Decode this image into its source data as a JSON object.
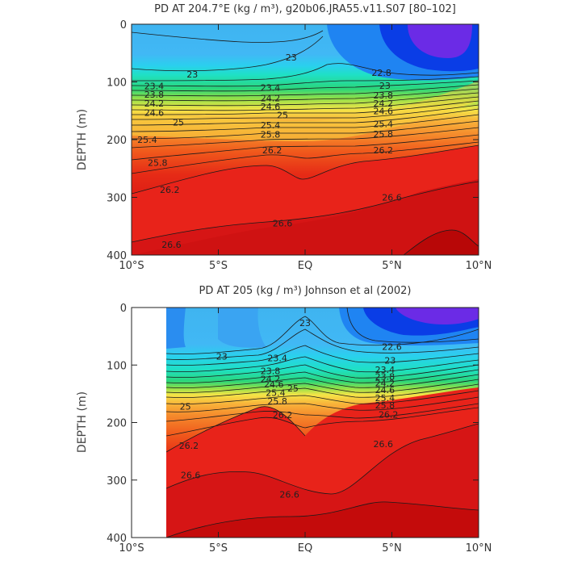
{
  "chart_data": [
    {
      "type": "heatmap",
      "title": "PD AT 204.7°E (kg / m³), g20b06.JRA55.v11.S07 [80–102]",
      "xlabel": "",
      "ylabel": "DEPTH (m)",
      "x_ticks": [
        "10°S",
        "5°S",
        "EQ",
        "5°N",
        "10°N"
      ],
      "x_tick_values": [
        -10,
        -5,
        0,
        5,
        10
      ],
      "xlim": [
        -10,
        10
      ],
      "y_ticks": [
        "0",
        "100",
        "200",
        "300",
        "400"
      ],
      "y_tick_values": [
        0,
        100,
        200,
        300,
        400
      ],
      "ylim": [
        400,
        0
      ],
      "contour_interval": 0.2,
      "contour_labels": [
        {
          "text": "23",
          "x": -6.5,
          "y": 87
        },
        {
          "text": "23",
          "x": -0.8,
          "y": 57
        },
        {
          "text": "22.8",
          "x": 4.4,
          "y": 84
        },
        {
          "text": "23.4",
          "x": -8.7,
          "y": 107
        },
        {
          "text": "23.8",
          "x": -8.7,
          "y": 122
        },
        {
          "text": "24.2",
          "x": -8.7,
          "y": 137
        },
        {
          "text": "24.6",
          "x": -8.7,
          "y": 153
        },
        {
          "text": "25",
          "x": -7.3,
          "y": 170
        },
        {
          "text": "25.4",
          "x": -9.1,
          "y": 200
        },
        {
          "text": "25.8",
          "x": -8.5,
          "y": 240
        },
        {
          "text": "26.2",
          "x": -7.8,
          "y": 287
        },
        {
          "text": "26.6",
          "x": -7.7,
          "y": 382
        },
        {
          "text": "23.4",
          "x": -2.0,
          "y": 110
        },
        {
          "text": "24.2",
          "x": -2.0,
          "y": 128
        },
        {
          "text": "24.6",
          "x": -2.0,
          "y": 143
        },
        {
          "text": "25",
          "x": -1.3,
          "y": 157
        },
        {
          "text": "25.4",
          "x": -2.0,
          "y": 175
        },
        {
          "text": "25.8",
          "x": -2.0,
          "y": 191
        },
        {
          "text": "26.2",
          "x": -1.9,
          "y": 218
        },
        {
          "text": "26.6",
          "x": -1.3,
          "y": 345
        },
        {
          "text": "23",
          "x": 4.6,
          "y": 106
        },
        {
          "text": "23.8",
          "x": 4.5,
          "y": 123
        },
        {
          "text": "24.2",
          "x": 4.5,
          "y": 137
        },
        {
          "text": "24.6",
          "x": 4.5,
          "y": 150
        },
        {
          "text": "25.4",
          "x": 4.5,
          "y": 173
        },
        {
          "text": "25.8",
          "x": 4.5,
          "y": 190
        },
        {
          "text": "26.2",
          "x": 4.5,
          "y": 218
        },
        {
          "text": "26.6",
          "x": 5.0,
          "y": 300
        }
      ]
    },
    {
      "type": "heatmap",
      "title": "PD AT 205 (kg / m³) Johnson et al (2002)",
      "xlabel": "",
      "ylabel": "DEPTH (m)",
      "x_ticks": [
        "10°S",
        "5°S",
        "EQ",
        "5°N",
        "10°N"
      ],
      "x_tick_values": [
        -10,
        -5,
        0,
        5,
        10
      ],
      "xlim": [
        -10,
        10
      ],
      "y_ticks": [
        "0",
        "100",
        "200",
        "300",
        "400"
      ],
      "y_tick_values": [
        0,
        100,
        200,
        300,
        400
      ],
      "ylim": [
        400,
        0
      ],
      "data_x_range": [
        -8,
        10
      ],
      "contour_interval": 0.2,
      "contour_labels": [
        {
          "text": "23",
          "x": 0.0,
          "y": 27
        },
        {
          "text": "22.6",
          "x": 5.0,
          "y": 68
        },
        {
          "text": "23",
          "x": -4.8,
          "y": 85
        },
        {
          "text": "23.4",
          "x": -1.6,
          "y": 88
        },
        {
          "text": "23.8",
          "x": -2.0,
          "y": 110
        },
        {
          "text": "24.2",
          "x": -2.0,
          "y": 124
        },
        {
          "text": "24.6",
          "x": -1.8,
          "y": 133
        },
        {
          "text": "25",
          "x": -0.7,
          "y": 140
        },
        {
          "text": "25.4",
          "x": -1.7,
          "y": 148
        },
        {
          "text": "25.8",
          "x": -1.6,
          "y": 163
        },
        {
          "text": "25",
          "x": -6.9,
          "y": 172
        },
        {
          "text": "26.2",
          "x": -1.3,
          "y": 187
        },
        {
          "text": "26.2",
          "x": -6.7,
          "y": 240
        },
        {
          "text": "26.6",
          "x": -6.6,
          "y": 291
        },
        {
          "text": "26.6",
          "x": -0.9,
          "y": 325
        },
        {
          "text": "23",
          "x": 4.9,
          "y": 92
        },
        {
          "text": "23.4",
          "x": 4.6,
          "y": 108
        },
        {
          "text": "23.8",
          "x": 4.6,
          "y": 120
        },
        {
          "text": "24.2",
          "x": 4.6,
          "y": 131
        },
        {
          "text": "24.6",
          "x": 4.6,
          "y": 143
        },
        {
          "text": "25.4",
          "x": 4.6,
          "y": 157
        },
        {
          "text": "25.8",
          "x": 4.6,
          "y": 170
        },
        {
          "text": "26.2",
          "x": 4.8,
          "y": 186
        },
        {
          "text": "26.6",
          "x": 4.5,
          "y": 237
        }
      ]
    }
  ]
}
